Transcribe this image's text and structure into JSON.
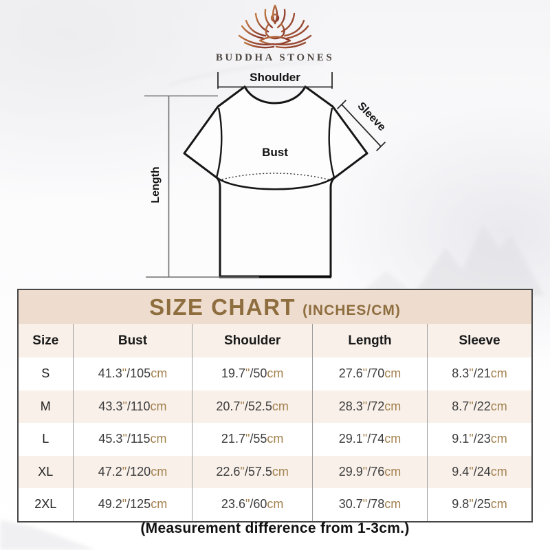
{
  "brand": {
    "name": "BUDDHA STONES",
    "logo_icon": "lotus-meditation-icon"
  },
  "diagram": {
    "shoulder_label": "Shoulder",
    "sleeve_label": "Sleeve",
    "bust_label": "Bust",
    "length_label": "Length"
  },
  "size_chart": {
    "title": "SIZE CHART",
    "title_note": "(INCHES/CM)",
    "columns": [
      "Size",
      "Bust",
      "Shoulder",
      "Length",
      "Sleeve"
    ],
    "unit_inches_symbol": "\"",
    "unit_cm_symbol": "cm",
    "rows": [
      {
        "size": "S",
        "bust": {
          "in": "41.3",
          "cm": "105"
        },
        "shoulder": {
          "in": "19.7",
          "cm": "50"
        },
        "length": {
          "in": "27.6",
          "cm": "70"
        },
        "sleeve": {
          "in": "8.3",
          "cm": "21"
        }
      },
      {
        "size": "M",
        "bust": {
          "in": "43.3",
          "cm": "110"
        },
        "shoulder": {
          "in": "20.7",
          "cm": "52.5"
        },
        "length": {
          "in": "28.3",
          "cm": "72"
        },
        "sleeve": {
          "in": "8.7",
          "cm": "22"
        }
      },
      {
        "size": "L",
        "bust": {
          "in": "45.3",
          "cm": "115"
        },
        "shoulder": {
          "in": "21.7",
          "cm": "55"
        },
        "length": {
          "in": "29.1",
          "cm": "74"
        },
        "sleeve": {
          "in": "9.1",
          "cm": "23"
        }
      },
      {
        "size": "XL",
        "bust": {
          "in": "47.2",
          "cm": "120"
        },
        "shoulder": {
          "in": "22.6",
          "cm": "57.5"
        },
        "length": {
          "in": "29.9",
          "cm": "76"
        },
        "sleeve": {
          "in": "9.4",
          "cm": "24"
        }
      },
      {
        "size": "2XL",
        "bust": {
          "in": "49.2",
          "cm": "125"
        },
        "shoulder": {
          "in": "23.6",
          "cm": "60"
        },
        "length": {
          "in": "30.7",
          "cm": "78"
        },
        "sleeve": {
          "in": "9.8",
          "cm": "25"
        }
      }
    ]
  },
  "footnote": "(Measurement difference from 1-3cm.)",
  "colors": {
    "title_text": "#8e6d3e",
    "title_bg": "#eeddcf",
    "row_tint": "#f8f0e9",
    "unit_text": "#a3814f",
    "value_text": "#3c3c3c",
    "logo_gradient_start": "#c27a43",
    "logo_gradient_end": "#8a382c"
  },
  "chart_data": {
    "type": "table",
    "title": "SIZE CHART (INCHES/CM)",
    "columns": [
      "Size",
      "Bust",
      "Shoulder",
      "Length",
      "Sleeve"
    ],
    "rows": [
      [
        "S",
        "41.3\"/105cm",
        "19.7\"/50cm",
        "27.6\"/70cm",
        "8.3\"/21cm"
      ],
      [
        "M",
        "43.3\"/110cm",
        "20.7\"/52.5cm",
        "28.3\"/72cm",
        "8.7\"/22cm"
      ],
      [
        "L",
        "45.3\"/115cm",
        "21.7\"/55cm",
        "29.1\"/74cm",
        "9.1\"/23cm"
      ],
      [
        "XL",
        "47.2\"/120cm",
        "22.6\"/57.5cm",
        "29.9\"/76cm",
        "9.4\"/24cm"
      ],
      [
        "2XL",
        "49.2\"/125cm",
        "23.6\"/60cm",
        "30.7\"/78cm",
        "9.8\"/25cm"
      ]
    ],
    "footnote": "(Measurement difference from 1-3cm.)"
  }
}
